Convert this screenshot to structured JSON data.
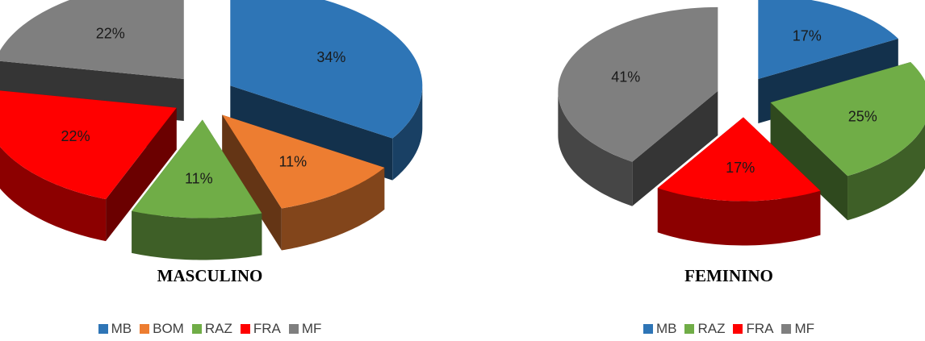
{
  "chart_data": [
    {
      "type": "pie",
      "title": "MASCULINO",
      "categories": [
        "MB",
        "BOM",
        "RAZ",
        "FRA",
        "MF"
      ],
      "values": [
        34,
        11,
        11,
        22,
        22
      ],
      "labels": [
        "34%",
        "11%",
        "11%",
        "22%",
        "22%"
      ],
      "colors": [
        "#2E75B6",
        "#ED7D31",
        "#70AD47",
        "#FF0000",
        "#7F7F7F"
      ],
      "exploded": true,
      "three_d": true,
      "legend_position": "bottom"
    },
    {
      "type": "pie",
      "title": "FEMININO",
      "categories": [
        "MB",
        "RAZ",
        "FRA",
        "MF"
      ],
      "values": [
        17,
        25,
        17,
        41
      ],
      "labels": [
        "17%",
        "25%",
        "17%",
        "41%"
      ],
      "colors": [
        "#2E75B6",
        "#70AD47",
        "#FF0000",
        "#7F7F7F"
      ],
      "exploded": true,
      "three_d": true,
      "legend_position": "bottom"
    }
  ]
}
